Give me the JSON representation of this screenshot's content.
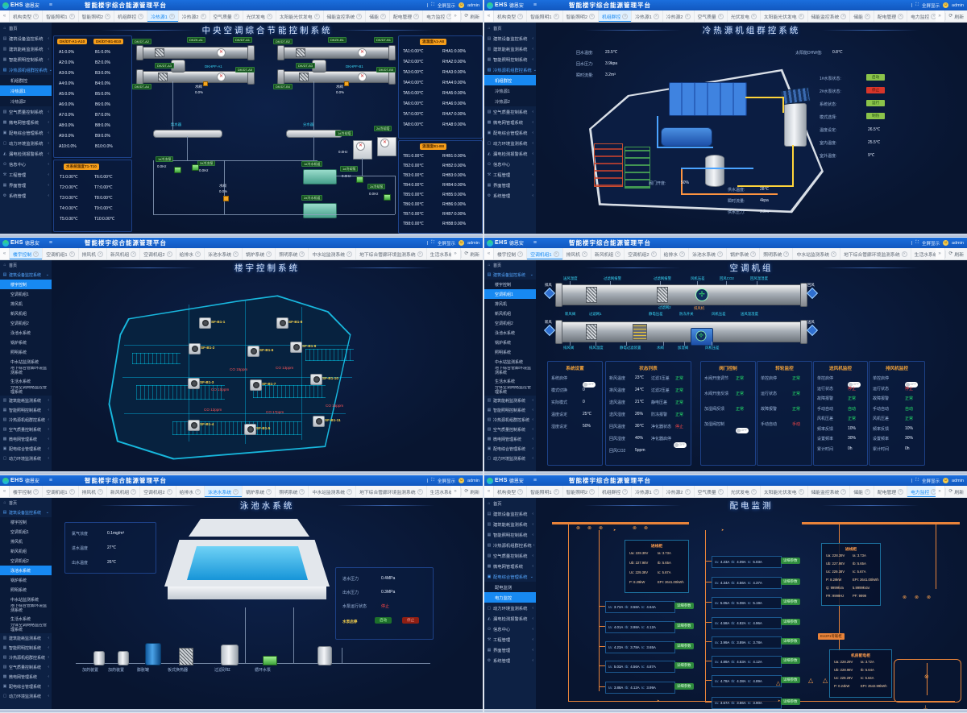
{
  "app": {
    "logo_text": "EHS",
    "brand": "德恩安",
    "title": "智能楼宇综合能源管理平台",
    "fullscreen": "全屏显示",
    "fullscreen_icon": "⛶",
    "user": "admin",
    "refresh": "刷新",
    "hamburger": "≡",
    "nav_back": "«",
    "nav_fwd": "»",
    "divider": "|"
  },
  "tab_rows": {
    "sys": [
      "机构类型",
      "智能照明1",
      "智能照明2",
      "机组群控",
      "冷热源1",
      "冷热源2",
      "空气质量",
      "光伏发电",
      "太阳能光伏发电",
      "储能监控系统",
      "储能",
      "配电管理",
      "电力监控",
      "机房动环监控"
    ],
    "bldg": [
      "楼宇控制",
      "空调机组1",
      "排风机",
      "新风机组",
      "空调机组2",
      "给排水",
      "泳池水系统",
      "锅炉系统",
      "照明系统",
      "中水站监测系统",
      "地下综合管廊环境监测系统",
      "生活水系统",
      "分体空调"
    ]
  },
  "sidebars": {
    "A": [
      {
        "label": "首页",
        "type": "home",
        "icon": "home-icon"
      },
      {
        "label": "建筑设备监控系统",
        "type": "g",
        "icon": "building-icon"
      },
      {
        "label": "建筑能耗监测系统",
        "type": "g",
        "icon": "energy-icon"
      },
      {
        "label": "智能照明控制系统",
        "type": "g",
        "icon": "light-icon"
      },
      {
        "label": "冷热源机组群控系统",
        "type": "go",
        "icon": "hvac-icon"
      },
      {
        "label": "机组群控",
        "type": "s"
      },
      {
        "label": "冷热源1",
        "type": "s"
      },
      {
        "label": "冷热源2",
        "type": "s"
      },
      {
        "label": "空气质量控制系统",
        "type": "g",
        "icon": "air-icon"
      },
      {
        "label": "微电网管理系统",
        "type": "g",
        "icon": "grid-icon"
      },
      {
        "label": "配电综合管理系统",
        "type": "g",
        "icon": "power-icon"
      },
      {
        "label": "动力环境监测系统",
        "type": "g",
        "icon": "env-icon"
      },
      {
        "label": "漏电检测报警系统",
        "type": "g",
        "icon": "alarm-icon"
      },
      {
        "label": "信息中心",
        "type": "g",
        "icon": "info-icon"
      },
      {
        "label": "工程管理",
        "type": "g",
        "icon": "wrench-icon"
      },
      {
        "label": "界面管理",
        "type": "g",
        "icon": "layout-icon"
      },
      {
        "label": "系统管理",
        "type": "g",
        "icon": "gear-icon"
      }
    ],
    "B": [
      {
        "label": "首页",
        "type": "home",
        "icon": "home-icon"
      },
      {
        "label": "建筑设备监控系统",
        "type": "go",
        "icon": "building-icon"
      },
      {
        "label": "楼宇控制",
        "type": "s"
      },
      {
        "label": "空调机组1",
        "type": "s"
      },
      {
        "label": "排风机",
        "type": "s"
      },
      {
        "label": "新风机组",
        "type": "s"
      },
      {
        "label": "空调机组2",
        "type": "s"
      },
      {
        "label": "泳池水系统",
        "type": "s"
      },
      {
        "label": "锅炉系统",
        "type": "s"
      },
      {
        "label": "照明系统",
        "type": "s"
      },
      {
        "label": "中水站监测系统",
        "type": "s"
      },
      {
        "label": "地下综合管廊环境监测系统",
        "type": "s",
        "wrap": true
      },
      {
        "label": "生活水系统",
        "type": "s"
      },
      {
        "label": "分体空调网络监控管理系统",
        "type": "s",
        "wrap": true
      },
      {
        "label": "建筑能耗监测系统",
        "type": "g",
        "icon": "energy-icon"
      },
      {
        "label": "智能照明控制系统",
        "type": "g",
        "icon": "light-icon"
      },
      {
        "label": "冷热源机组群控系统",
        "type": "g",
        "icon": "hvac-icon"
      },
      {
        "label": "空气质量控制系统",
        "type": "g",
        "icon": "air-icon"
      },
      {
        "label": "微电网管理系统",
        "type": "g",
        "icon": "grid-icon"
      },
      {
        "label": "配电综合管理系统",
        "type": "g",
        "icon": "power-icon"
      },
      {
        "label": "动力环境监测系统",
        "type": "g",
        "icon": "env-icon"
      }
    ],
    "C": [
      {
        "label": "首页",
        "type": "home",
        "icon": "home-icon"
      },
      {
        "label": "建筑设备监控系统",
        "type": "g",
        "icon": "building-icon"
      },
      {
        "label": "建筑能耗监测系统",
        "type": "g",
        "icon": "energy-icon"
      },
      {
        "label": "智能照明控制系统",
        "type": "g",
        "icon": "light-icon"
      },
      {
        "label": "冷热源机组群控系统",
        "type": "g",
        "icon": "hvac-icon"
      },
      {
        "label": "空气质量控制系统",
        "type": "g",
        "icon": "air-icon"
      },
      {
        "label": "微电网管理系统",
        "type": "g",
        "icon": "grid-icon"
      },
      {
        "label": "配电综合管理系统",
        "type": "go",
        "icon": "power-icon"
      },
      {
        "label": "配电监测",
        "type": "s"
      },
      {
        "label": "电力监控",
        "type": "s"
      },
      {
        "label": "动力环境监测系统",
        "type": "g",
        "icon": "env-icon"
      },
      {
        "label": "漏电检测报警系统",
        "type": "g",
        "icon": "alarm-icon"
      },
      {
        "label": "信息中心",
        "type": "g",
        "icon": "info-icon"
      },
      {
        "label": "工程管理",
        "type": "g",
        "icon": "wrench-icon"
      },
      {
        "label": "界面管理",
        "type": "g",
        "icon": "layout-icon"
      },
      {
        "label": "系统管理",
        "type": "g",
        "icon": "gear-icon"
      }
    ]
  },
  "panels": [
    {
      "title": "中央空调综合节能控制系统",
      "tabs": "sys",
      "active_tab": "冷热源1",
      "sidebar": "A",
      "sidebar_active": "冷热源1",
      "box_ab": {
        "h1": "DK/DT-A1-A10",
        "h2": "DK/DT-B1-B10",
        "a": [
          "A1:0.0%",
          "A2:0.0%",
          "A3:0.0%",
          "A4:0.0%",
          "A5:0.0%",
          "A6:0.0%",
          "A7:0.0%",
          "A8:0.0%",
          "A9:0.0%",
          "A10:0.0%"
        ],
        "b": [
          "B1:0.0%",
          "B2:0.0%",
          "B3:0.0%",
          "B4:0.0%",
          "B5:0.0%",
          "B6:0.0%",
          "B7:0.0%",
          "B8:0.0%",
          "B9:0.0%",
          "B10:0.0%"
        ]
      },
      "box_t": {
        "h": "水系统温度T1-T10",
        "t": [
          "T1:0.00℃",
          "T2:0.00℃",
          "T3:0.00℃",
          "T4:0.00℃",
          "T5:0.00℃",
          "T6:0.00℃",
          "T7:0.00℃",
          "T8:0.00℃",
          "T9:0.00℃",
          "T10:0.00℃"
        ]
      },
      "box_ta": {
        "h": "温湿度A1-A8",
        "t": [
          "TA1:0.00℃",
          "TA2:0.00℃",
          "TA3:0.00℃",
          "TA4:0.00℃",
          "TA5:0.00℃",
          "TA6:0.00℃",
          "TA7:0.00℃",
          "TA8:0.00℃"
        ],
        "rh": [
          "RHA1:0.00%",
          "RHA2:0.00%",
          "RHA3:0.00%",
          "RHA4:0.00%",
          "RHA5:0.00%",
          "RHA6:0.00%",
          "RHA7:0.00%",
          "RHA8:0.00%"
        ]
      },
      "box_tb": {
        "h": "温湿度B1-B8",
        "t": [
          "TB1:0.00℃",
          "TB2:0.00℃",
          "TB3:0.00℃",
          "TB4:0.00℃",
          "TB5:0.00℃",
          "TB6:0.00℃",
          "TB7:0.00℃",
          "TB8:0.00℃"
        ],
        "rh": [
          "RHB1:0.00%",
          "RHB2:0.00%",
          "RHB3:0.00%",
          "RHB4:0.00%",
          "RHB5:0.00%",
          "RHB6:0.00%",
          "RHB7:0.00%",
          "RHB8:0.00%"
        ]
      },
      "diagram": {
        "chips_a": [
          "DK/DT-A2",
          "DKZK-A1",
          "DK/DT-A1",
          "DK/DT-A3",
          "DK/DT-A5",
          "DK/DT-A4"
        ],
        "hpf_a": "DKHPF-A1",
        "chips_b": [
          "DK/DT-B2",
          "DKZK-B1",
          "DK/DT-B1",
          "DK/DT-B3",
          "DK/DT-B5",
          "DK/DT-B4"
        ],
        "hpf_b": "DKHPF-B1",
        "valve_label": "水阀",
        "valve_value": "0.0%",
        "collector": "集水器",
        "divider": "分水器",
        "pumps": [
          {
            "n": "1#冷冻泵",
            "v": "0.0Hz"
          },
          {
            "n": "2#冷冻泵",
            "v": "0.0Hz"
          },
          {
            "n": "1#冷却泵",
            "v": "0.0Hz"
          },
          {
            "n": "2#冷却泵",
            "v": "0.0Hz"
          }
        ],
        "chillers": [
          "1#冷水机组",
          "2#冷水机组"
        ],
        "towers": [
          {
            "n": "1#冷却塔",
            "v": "0.0Hz"
          },
          {
            "n": "2#冷却塔",
            "v": "0.0Hz"
          }
        ]
      }
    },
    {
      "title": "冷热源机组群控系统",
      "tabs": "sys",
      "active_tab": "机组群控",
      "sidebar": "A",
      "sidebar_active": "机组群控",
      "readings_left": [
        [
          "回水温度:",
          "23.5℃"
        ],
        [
          "回水压力:",
          "3.9kpa"
        ],
        [
          "瞬时流量:",
          "3.2m³"
        ]
      ],
      "reading_solar": [
        "太阳能DHW值:",
        "0.8℃"
      ],
      "status": [
        {
          "l": "1#水泵状态:",
          "v": "启动",
          "k": "btn-g"
        },
        {
          "l": "2#水泵状态:",
          "v": "停止",
          "k": "btn-r"
        },
        {
          "l": "系统状态:",
          "v": "运行",
          "k": "btn-g"
        },
        {
          "l": "模式选择:",
          "v": "制热",
          "k": "btn-g"
        },
        {
          "l": "温度设定:",
          "v": "26.5℃",
          "k": "txt"
        },
        {
          "l": "室内温度:",
          "v": "25.5℃",
          "k": "txt"
        },
        {
          "l": "室外温度:",
          "v": "9℃",
          "k": "txt"
        }
      ],
      "valve": [
        "阀门开度:",
        "50%"
      ],
      "readings_bottom": [
        [
          "供水温度:",
          "28℃"
        ],
        [
          "瞬时流量:",
          "4kpa"
        ],
        [
          "供水压力:",
          "3.2m³"
        ]
      ]
    },
    {
      "title": "楼宇控制系统",
      "tabs": "bldg",
      "active_tab": "楼宇控制",
      "sidebar": "B",
      "sidebar_active": "楼宇控制",
      "fans": [
        "SF-B1-1",
        "SF-B1-8",
        "SF-B1-2",
        "SF-B1-6",
        "SF-B1-9",
        "SF-B1-3",
        "SF-B1-7",
        "SF-B1-10",
        "SF-B1-4",
        "SF-B1-5",
        "SF-B1-11"
      ],
      "co": [
        "CO 15ppm",
        "CO 13ppm",
        "CO 10ppm",
        "CO 12ppm",
        "CO 17ppm",
        "CO 15ppm"
      ]
    },
    {
      "title": "空调机组",
      "tabs": "bldg",
      "active_tab": "空调机组1",
      "sidebar": "B",
      "sidebar_active": "空调机组1",
      "duct_top": [
        "送风温度",
        "过滤网报警",
        "过滤网报警",
        "风机压差",
        "回风CO2",
        "回风温湿度"
      ],
      "duct_mid": [
        "新风阀",
        "过滤网1",
        "静电压差",
        "防冻开关",
        "风机压差",
        "送风温湿度"
      ],
      "duct_mid2": [
        "过滤网2",
        "排风机"
      ],
      "duct_bottom": [
        "排风阀",
        "排风温度",
        "静电过滤装置",
        "水阀",
        "加湿阀",
        "风机压差"
      ],
      "air_arrows": [
        "排风",
        "回风",
        "新风",
        "送风"
      ],
      "tables": [
        {
          "h": "系统设置",
          "rows": [
            [
              "系统启停",
              "OFF",
              "t"
            ],
            [
              "模式切换",
              "0",
              ""
            ],
            [
              "实际模式",
              "0",
              ""
            ],
            [
              "温度设定",
              "25℃",
              ""
            ],
            [
              "湿度设定",
              "50%",
              ""
            ]
          ]
        },
        {
          "h": "状态列表",
          "left": [
            [
              "新风温度",
              "23℃"
            ],
            [
              "排风温度",
              "24℃"
            ],
            [
              "送风温度",
              "21℃"
            ],
            [
              "送风湿度",
              "26%"
            ],
            [
              "回风温度",
              "30℃"
            ],
            [
              "回风湿度",
              "40%"
            ],
            [
              "回风CO2",
              "5ppm"
            ]
          ],
          "right": [
            [
              "过滤1压差",
              "正常",
              "g"
            ],
            [
              "过滤2压差",
              "正常",
              "g"
            ],
            [
              "静电压差",
              "正常",
              "g"
            ],
            [
              "防冻报警",
              "正常",
              "g"
            ],
            [
              "净化器状态",
              "停止",
              "r"
            ],
            [
              "净化器启停",
              "OFF",
              "t"
            ]
          ]
        },
        {
          "h": "阀门控制",
          "rows": [
            [
              "水阀开度调节",
              "正常",
              "g"
            ],
            [
              "水阀开度反馈",
              "正常",
              "g"
            ],
            [
              "加湿阀反馈",
              "正常",
              "g"
            ],
            [
              "加湿阀控制",
              "OFF",
              "t"
            ]
          ]
        },
        {
          "h": "转轮监控",
          "rows": [
            [
              "单控启停",
              "正常",
              "g"
            ],
            [
              "运行状态",
              "正常",
              "g"
            ],
            [
              "故障报警",
              "正常",
              "g"
            ],
            [
              "手动自动",
              "手动",
              "r"
            ]
          ]
        },
        {
          "h": "送风机监控",
          "rows": [
            [
              "单控启停",
              "OFF",
              "t"
            ],
            [
              "运行状态",
              "停止",
              "r"
            ],
            [
              "故障报警",
              "正常",
              "g"
            ],
            [
              "手动自动",
              "自动",
              "g"
            ],
            [
              "风机压差",
              "正常",
              "g"
            ],
            [
              "频率反馈",
              "10%",
              ""
            ],
            [
              "设置频率",
              "30%",
              ""
            ],
            [
              "累计时间",
              "0h",
              ""
            ]
          ]
        },
        {
          "h": "排风机监控",
          "rows": [
            [
              "单控启停",
              "OFF",
              "t"
            ],
            [
              "运行状态",
              "停止",
              "r"
            ],
            [
              "故障报警",
              "正常",
              "g"
            ],
            [
              "手动自动",
              "自动",
              "g"
            ],
            [
              "风机压差",
              "正常",
              "g"
            ],
            [
              "频率反馈",
              "10%",
              ""
            ],
            [
              "设置频率",
              "30%",
              ""
            ],
            [
              "累计时间",
              "0h",
              ""
            ]
          ]
        }
      ]
    },
    {
      "title": "泳池水系统",
      "tabs": "bldg",
      "active_tab": "泳池水系统",
      "sidebar": "B",
      "sidebar_active": "泳池水系统",
      "info_left": [
        [
          "氯气浓度",
          "0.1mg/m³"
        ],
        [
          "进水温度",
          "27℃"
        ],
        [
          "出水温度",
          "26℃"
        ]
      ],
      "info_right": [
        [
          "进水压力",
          "0.4MPa"
        ],
        [
          "出水压力",
          "0.3MPa"
        ]
      ],
      "pump_state_label": "水泵运行状态",
      "pump_state": "停止",
      "pump_btn_label": "水泵启停",
      "btn_start": "启动",
      "btn_stop": "停止",
      "equipment": [
        "加药装置",
        "加药装置",
        "膨胀罐",
        "板式换热器",
        "过滤砂缸",
        "循环水泵"
      ]
    },
    {
      "title": "配电监测",
      "tabs": "sys",
      "active_tab": "电力监控",
      "sidebar": "C",
      "sidebar_active": "电力监控",
      "phase_labels": [
        "Ia:",
        "Ib:",
        "Ic:"
      ],
      "detail_btn": "详细参数",
      "bus_label": "EU2#1母联柜",
      "cabinet1": {
        "h": "进线柜",
        "rows": [
          [
            "Ua:",
            "228.39V",
            "Ia:",
            "3.73A"
          ],
          [
            "Ub:",
            "227.98V",
            "Ib:",
            "5.65A"
          ],
          [
            "Uc:",
            "229.38V",
            "Ic:",
            "5.67A"
          ],
          [
            "P:",
            "8.29kW",
            "EPI:",
            "2641.00kWh"
          ]
        ]
      },
      "cabinet2": {
        "h": "进线柜",
        "left": [
          [
            "Ua:",
            "228.39V"
          ],
          [
            "Ub:",
            "227.98V"
          ],
          [
            "Uc:",
            "229.38V"
          ],
          [
            "P:",
            "8.29kW"
          ],
          [
            "Q:",
            "9999kVa"
          ],
          [
            "FR:",
            "9999Hz"
          ]
        ],
        "right": [
          [
            "Ia:",
            "3.73A"
          ],
          [
            "Ib:",
            "5.65A"
          ],
          [
            "Ic:",
            "5.67A"
          ],
          [
            "EPI:",
            "2641.00kWh"
          ],
          [
            "",
            "5.9999kVar"
          ],
          [
            "PF:",
            "9999"
          ]
        ]
      },
      "cabinet3": {
        "h": "机房配电柜",
        "left": [
          [
            "Ua:",
            "228.29V"
          ],
          [
            "Ub:",
            "228.98V"
          ],
          [
            "Uc:",
            "229.29V"
          ],
          [
            "P:",
            "0.24kW"
          ]
        ],
        "right": [
          [
            "Ia:",
            "3.72A"
          ],
          [
            "Ib:",
            "5.64A"
          ],
          [
            "Ic:",
            "5.64A"
          ],
          [
            "EPI:",
            "2542.99kWh"
          ]
        ]
      },
      "feeders_left": [
        [
          "3.72A",
          "3.58A",
          "4.64A"
        ],
        [
          "4.01A",
          "3.98A",
          "4.12A"
        ],
        [
          "4.23A",
          "3.78A",
          "3.65A"
        ],
        [
          "5.03A",
          "4.56A",
          "4.87A"
        ],
        [
          "3.88A",
          "4.12A",
          "3.99A"
        ]
      ],
      "feeders_right": [
        [
          "4.23A",
          "4.09A",
          "5.03A"
        ],
        [
          "4.34A",
          "4.56A",
          "4.37A"
        ],
        [
          "5.05A",
          "5.08A",
          "5.19A"
        ],
        [
          "4.58A",
          "4.82A",
          "4.96A"
        ],
        [
          "3.99A",
          "3.89A",
          "3.78A"
        ],
        [
          "4.89A",
          "4.53A",
          "4.12A"
        ],
        [
          "4.78A",
          "4.38A",
          "4.89A"
        ],
        [
          "3.67A",
          "3.86A",
          "3.90A"
        ]
      ]
    }
  ],
  "colors": {
    "accent_blue": "#1789f2",
    "header_blue": "#1b6fdd",
    "chip_orange": "#f59e1b",
    "status_green": "#25e36a",
    "status_red": "#ff4747",
    "schematic_orange": "#e8833a",
    "plan_cyan": "#19c9f0"
  }
}
